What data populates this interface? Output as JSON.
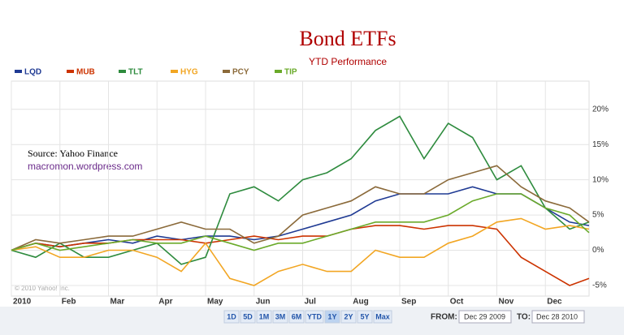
{
  "chart_data": {
    "type": "line",
    "title": "Bond ETFs",
    "subtitle": "YTD Performance",
    "annotations": {
      "source": "Source:   Yahoo Finance",
      "site": "macromon.wordpress.com",
      "copyright": "© 2010 Yahoo! Inc."
    },
    "x": [
      0,
      0.5,
      1,
      1.5,
      2,
      2.5,
      3,
      3.5,
      4,
      4.5,
      5,
      5.5,
      6,
      6.5,
      7,
      7.5,
      8,
      8.5,
      9,
      9.5,
      10,
      10.5,
      11,
      11.5,
      11.9
    ],
    "xlim": [
      0,
      11.9
    ],
    "xticks": [
      {
        "value": 0,
        "label": "2010"
      },
      {
        "value": 1,
        "label": "Feb"
      },
      {
        "value": 2,
        "label": "Mar"
      },
      {
        "value": 3,
        "label": "Apr"
      },
      {
        "value": 4,
        "label": "May"
      },
      {
        "value": 5,
        "label": "Jun"
      },
      {
        "value": 6,
        "label": "Jul"
      },
      {
        "value": 7,
        "label": "Aug"
      },
      {
        "value": 8,
        "label": "Sep"
      },
      {
        "value": 9,
        "label": "Oct"
      },
      {
        "value": 10,
        "label": "Nov"
      },
      {
        "value": 11,
        "label": "Dec"
      }
    ],
    "ylim": [
      -6.5,
      24
    ],
    "yticks": [
      {
        "value": -5,
        "label": "-5%"
      },
      {
        "value": 0,
        "label": "0%"
      },
      {
        "value": 5,
        "label": "5%"
      },
      {
        "value": 10,
        "label": "10%"
      },
      {
        "value": 15,
        "label": "15%"
      },
      {
        "value": 20,
        "label": "20%"
      }
    ],
    "grid": true,
    "series": [
      {
        "name": "LQD",
        "color": "#1f3a93",
        "values": [
          0,
          1,
          0.5,
          1,
          1.5,
          1,
          2,
          1.5,
          2,
          2,
          1.5,
          2,
          3,
          4,
          5,
          7,
          8,
          8,
          8,
          9,
          8,
          8,
          6,
          4,
          3.5
        ]
      },
      {
        "name": "MUB",
        "color": "#cc3300",
        "values": [
          0,
          1,
          0.5,
          1,
          1,
          1.5,
          1.5,
          1.5,
          1,
          1.5,
          2,
          1.5,
          2,
          2,
          3,
          3.5,
          3.5,
          3,
          3.5,
          3.5,
          3,
          -1,
          -3,
          -5,
          -4
        ]
      },
      {
        "name": "TLT",
        "color": "#2e8b3e",
        "values": [
          0,
          -1,
          1,
          -1,
          -1,
          0,
          1,
          -2,
          -1,
          8,
          9,
          7,
          10,
          11,
          13,
          17,
          19,
          13,
          18,
          16,
          10,
          12,
          6,
          3,
          4
        ]
      },
      {
        "name": "HYG",
        "color": "#f2a623",
        "values": [
          0,
          0.5,
          -1,
          -1,
          0,
          0,
          -1,
          -3,
          1,
          -4,
          -5,
          -3,
          -2,
          -3,
          -3,
          0,
          -1,
          -1,
          1,
          2,
          4,
          4.5,
          3,
          3.5,
          3
        ]
      },
      {
        "name": "PCY",
        "color": "#8b6a3a",
        "values": [
          0,
          1.5,
          1,
          1.5,
          2,
          2,
          3,
          4,
          3,
          3,
          1,
          2,
          5,
          6,
          7,
          9,
          8,
          8,
          10,
          11,
          12,
          9,
          7,
          6,
          4
        ]
      },
      {
        "name": "TIP",
        "color": "#6aaa2a",
        "values": [
          0,
          1,
          0,
          0.5,
          1,
          1.5,
          1,
          1,
          2,
          1,
          0,
          1,
          1,
          2,
          3,
          4,
          4,
          4,
          5,
          7,
          8,
          8,
          6,
          5,
          2.5
        ]
      }
    ]
  },
  "controls": {
    "ranges": [
      "1D",
      "5D",
      "1M",
      "3M",
      "6M",
      "YTD",
      "1Y",
      "2Y",
      "5Y",
      "Max"
    ],
    "from_label": "FROM:",
    "from": "Dec 29 2009",
    "to_label": "TO:",
    "to": "Dec 28 2010"
  }
}
